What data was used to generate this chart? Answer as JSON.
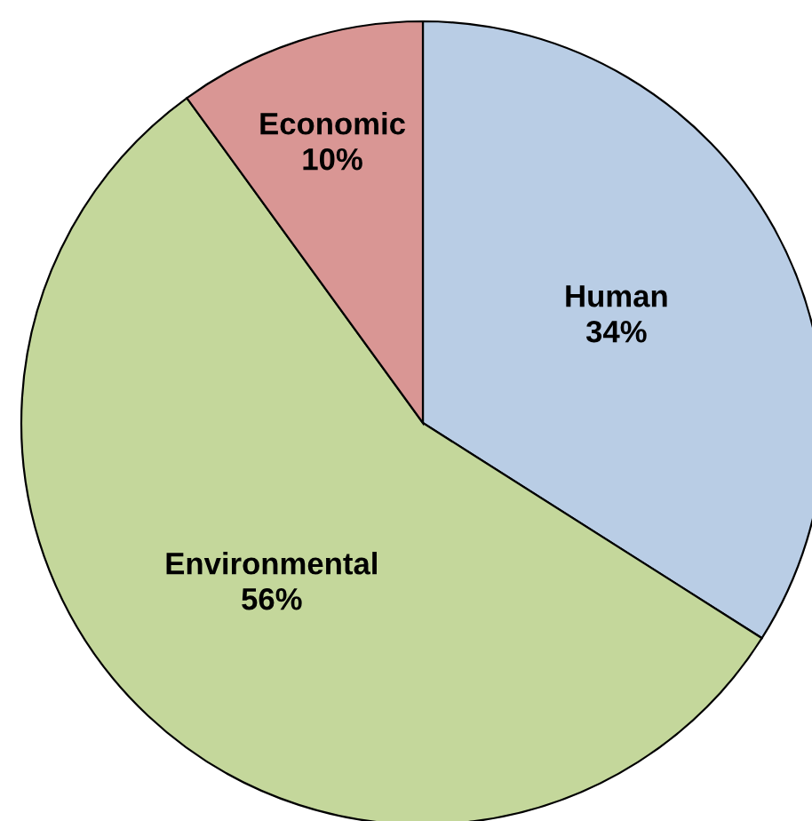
{
  "chart_data": {
    "type": "pie",
    "categories": [
      "Human",
      "Environmental",
      "Economic"
    ],
    "values": [
      34,
      56,
      10
    ],
    "colors": [
      "#b9cde5",
      "#c4d79b",
      "#d99694"
    ],
    "value_labels": [
      "34%",
      "56%",
      "10%"
    ]
  }
}
